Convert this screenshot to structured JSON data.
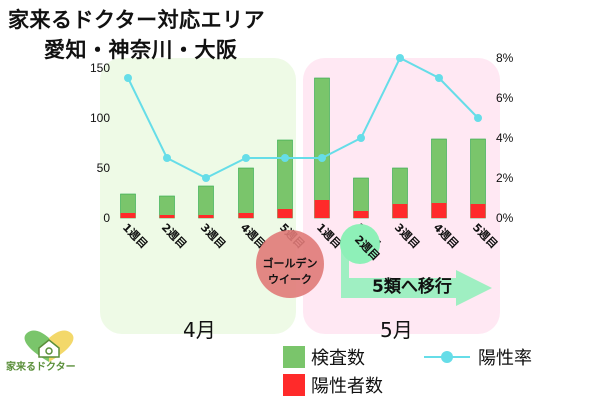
{
  "title_line1": "家来るドクター対応エリア",
  "title_line2": "愛知・神奈川・大阪",
  "periods": {
    "april": "4月",
    "may": "5月"
  },
  "golden_week": [
    "ゴールデン",
    "ウイーク"
  ],
  "shift_note": "5類へ移行",
  "legend": {
    "tests": "検査数",
    "positives": "陽性者数",
    "rate": "陽性率"
  },
  "logo_text": "家来るドクター",
  "colors": {
    "tests": "#7ac56b",
    "tests_edge": "#2aa84a",
    "positives": "#ff2a2a",
    "rate": "#66dde8",
    "april_bg": "#eefae6",
    "may_bg": "#ffe8f3",
    "gw_circle": "#e07a78",
    "arrow": "#8ef0b8"
  },
  "chart_data": {
    "type": "bar+line",
    "categories": [
      "1週目",
      "2週目",
      "3週目",
      "4週目",
      "5週目",
      "1週目",
      "2週目",
      "3週目",
      "4週目",
      "5週目"
    ],
    "y_left_ticks": [
      "0",
      "50",
      "100",
      "150"
    ],
    "y_right_ticks": [
      "0%",
      "2%",
      "4%",
      "6%",
      "8%"
    ],
    "ylim_left": [
      0,
      160
    ],
    "ylim_right": [
      0,
      8
    ],
    "series": [
      {
        "name": "検査数",
        "type": "bar",
        "values": [
          24,
          22,
          32,
          50,
          78,
          140,
          40,
          50,
          79,
          79
        ]
      },
      {
        "name": "陽性者数",
        "type": "bar",
        "values": [
          5,
          3,
          3,
          5,
          9,
          18,
          7,
          14,
          15,
          14
        ]
      },
      {
        "name": "陽性率",
        "type": "line",
        "axis": "right",
        "values": [
          7,
          3,
          2,
          3,
          3,
          3,
          4,
          8,
          7,
          5
        ]
      }
    ],
    "grid": false
  }
}
